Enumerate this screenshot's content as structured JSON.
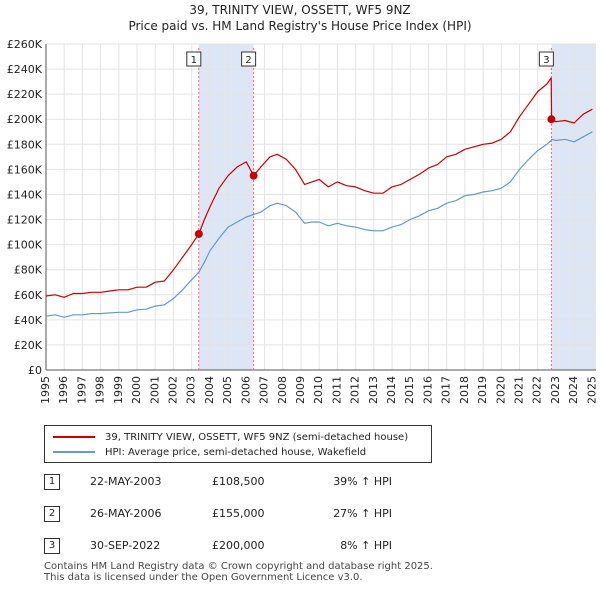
{
  "chart_data": {
    "type": "line",
    "title": "39, TRINITY VIEW, OSSETT, WF5 9NZ",
    "subtitle": "Price paid vs. HM Land Registry's House Price Index (HPI)",
    "xlabel": "",
    "ylabel": "",
    "xlim": [
      1995,
      2025.2
    ],
    "ylim": [
      0,
      260000
    ],
    "y_ticks": [
      0,
      20000,
      40000,
      60000,
      80000,
      100000,
      120000,
      140000,
      160000,
      180000,
      200000,
      220000,
      240000,
      260000
    ],
    "y_tick_labels": [
      "£0",
      "£20K",
      "£40K",
      "£60K",
      "£80K",
      "£100K",
      "£120K",
      "£140K",
      "£160K",
      "£180K",
      "£200K",
      "£220K",
      "£240K",
      "£260K"
    ],
    "x_ticks": [
      1995,
      1996,
      1997,
      1998,
      1999,
      2000,
      2001,
      2002,
      2003,
      2004,
      2005,
      2006,
      2007,
      2008,
      2009,
      2010,
      2011,
      2012,
      2013,
      2014,
      2015,
      2016,
      2017,
      2018,
      2019,
      2020,
      2021,
      2022,
      2023,
      2024,
      2025
    ],
    "x_tick_labels": [
      "1995",
      "1996",
      "1997",
      "1998",
      "1999",
      "2000",
      "2001",
      "2002",
      "2003",
      "2004",
      "2005",
      "2006",
      "2007",
      "2008",
      "2009",
      "2010",
      "2011",
      "2012",
      "2013",
      "2014",
      "2015",
      "2016",
      "2017",
      "2018",
      "2019",
      "2020",
      "2021",
      "2022",
      "2023",
      "2024",
      "2025"
    ],
    "grid": true,
    "colors": {
      "property": "#cc0000",
      "hpi": "#6699cc",
      "shade": "#dde6f5",
      "marker_line": "#ff6666"
    },
    "series": [
      {
        "name": "39, TRINITY VIEW, OSSETT, WF5 9NZ (semi-detached house)",
        "x": [
          1995.0,
          1995.5,
          1996.0,
          1996.5,
          1997.0,
          1997.5,
          1998.0,
          1998.5,
          1999.0,
          1999.5,
          2000.0,
          2000.5,
          2001.0,
          2001.5,
          2002.0,
          2002.5,
          2003.0,
          2003.39,
          2003.7,
          2004.0,
          2004.5,
          2005.0,
          2005.5,
          2006.0,
          2006.4,
          2006.8,
          2007.3,
          2007.7,
          2008.2,
          2008.7,
          2009.2,
          2009.6,
          2010.0,
          2010.5,
          2011.0,
          2011.5,
          2012.0,
          2012.5,
          2013.0,
          2013.5,
          2014.0,
          2014.5,
          2015.0,
          2015.5,
          2016.0,
          2016.5,
          2017.0,
          2017.5,
          2018.0,
          2018.5,
          2019.0,
          2019.5,
          2020.0,
          2020.5,
          2021.0,
          2021.5,
          2022.0,
          2022.5,
          2022.74,
          2022.76,
          2023.0,
          2023.5,
          2024.0,
          2024.5,
          2025.0
        ],
        "values": [
          59000,
          60000,
          58000,
          61000,
          61000,
          62000,
          62000,
          63000,
          64000,
          64000,
          66000,
          66000,
          70000,
          71000,
          80000,
          90000,
          100000,
          108500,
          120000,
          130000,
          145000,
          155000,
          162000,
          166000,
          155000,
          162000,
          170000,
          172000,
          168000,
          160000,
          148000,
          150000,
          152000,
          146000,
          150000,
          147000,
          146000,
          143000,
          141000,
          141000,
          146000,
          148000,
          152000,
          156000,
          161000,
          164000,
          170000,
          172000,
          176000,
          178000,
          180000,
          181000,
          184000,
          190000,
          202000,
          212000,
          222000,
          228000,
          233000,
          200000,
          198000,
          199000,
          197000,
          204000,
          208000
        ]
      },
      {
        "name": "HPI: Average price, semi-detached house, Wakefield",
        "x": [
          1995.0,
          1995.5,
          1996.0,
          1996.5,
          1997.0,
          1997.5,
          1998.0,
          1998.5,
          1999.0,
          1999.5,
          2000.0,
          2000.5,
          2001.0,
          2001.5,
          2002.0,
          2002.5,
          2003.0,
          2003.39,
          2003.7,
          2004.0,
          2004.5,
          2005.0,
          2005.5,
          2006.0,
          2006.4,
          2006.8,
          2007.3,
          2007.7,
          2008.2,
          2008.7,
          2009.2,
          2009.6,
          2010.0,
          2010.5,
          2011.0,
          2011.5,
          2012.0,
          2012.5,
          2013.0,
          2013.5,
          2014.0,
          2014.5,
          2015.0,
          2015.5,
          2016.0,
          2016.5,
          2017.0,
          2017.5,
          2018.0,
          2018.5,
          2019.0,
          2019.5,
          2020.0,
          2020.5,
          2021.0,
          2021.5,
          2022.0,
          2022.5,
          2022.74,
          2022.76,
          2023.0,
          2023.5,
          2024.0,
          2024.5,
          2025.0
        ],
        "values": [
          43000,
          44000,
          42000,
          44000,
          44000,
          45000,
          45000,
          45500,
          46000,
          46000,
          48000,
          48500,
          51000,
          52000,
          57000,
          64000,
          72000,
          78000,
          86000,
          95000,
          105000,
          114000,
          118000,
          122000,
          124000,
          126000,
          131000,
          133000,
          131000,
          126000,
          117000,
          118000,
          118000,
          115000,
          117000,
          115000,
          114000,
          112000,
          111000,
          111000,
          114000,
          116000,
          120000,
          123000,
          127000,
          129000,
          133000,
          135000,
          139000,
          140000,
          142000,
          143000,
          145000,
          150000,
          160000,
          168000,
          175000,
          180000,
          183000,
          184000,
          183000,
          184000,
          182000,
          186000,
          190000
        ]
      }
    ],
    "sales": [
      {
        "label": "1",
        "x": 2003.39,
        "value": 108500
      },
      {
        "label": "2",
        "x": 2006.4,
        "value": 155000
      },
      {
        "label": "3",
        "x": 2022.75,
        "value": 200000
      }
    ]
  },
  "legend": {
    "property_label": "39, TRINITY VIEW, OSSETT, WF5 9NZ (semi-detached house)",
    "hpi_label": "HPI: Average price, semi-detached house, Wakefield"
  },
  "sales_table": [
    {
      "num": "1",
      "date": "22-MAY-2003",
      "price": "£108,500",
      "hpi": "39% ↑ HPI"
    },
    {
      "num": "2",
      "date": "26-MAY-2006",
      "price": "£155,000",
      "hpi": "27% ↑ HPI"
    },
    {
      "num": "3",
      "date": "30-SEP-2022",
      "price": "£200,000",
      "hpi": "8% ↑ HPI"
    }
  ],
  "footer": {
    "line1": "Contains HM Land Registry data © Crown copyright and database right 2025.",
    "line2": "This data is licensed under the Open Government Licence v3.0."
  }
}
